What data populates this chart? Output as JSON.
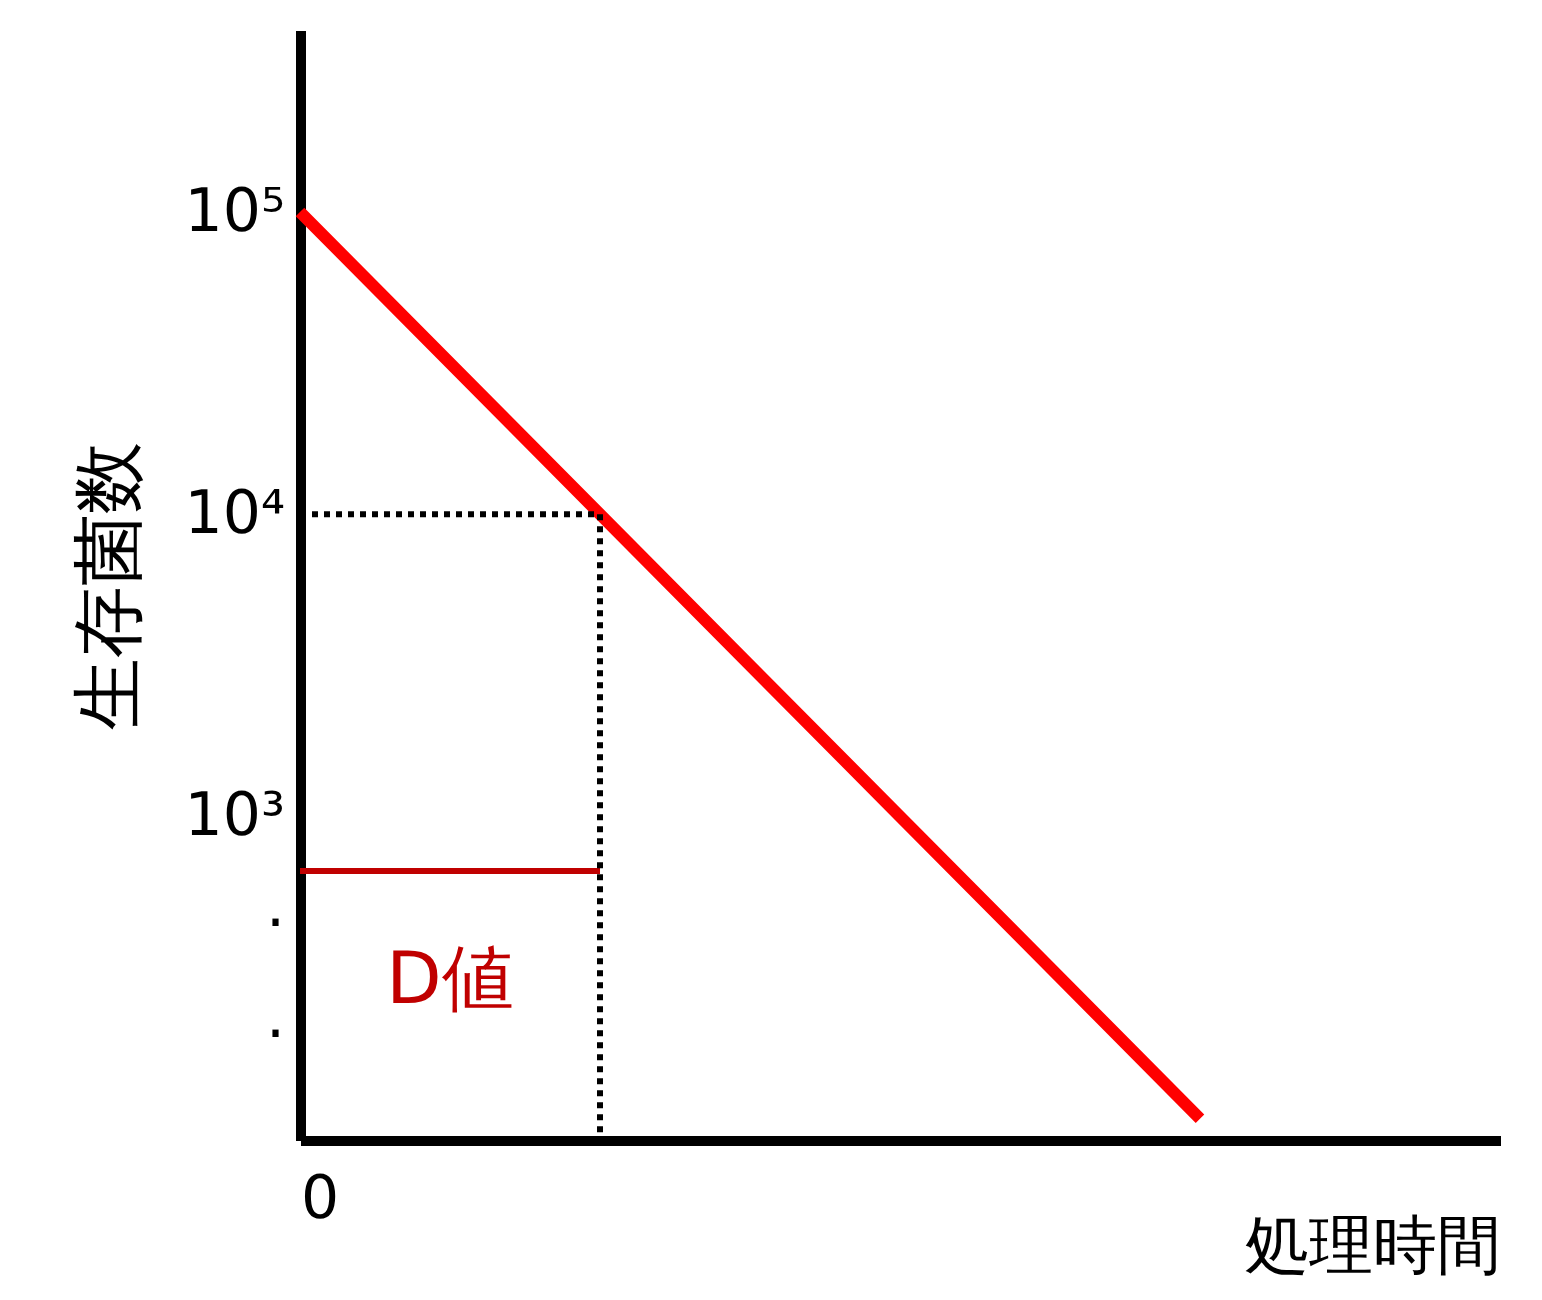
{
  "chart_data": {
    "type": "line",
    "xlabel": "処理時間",
    "ylabel": "生存菌数",
    "categories": [
      null,
      null,
      null,
      null,
      null
    ],
    "series": [
      {
        "color": "#ff0000",
        "values": [
          100000,
          10000,
          1000,
          100,
          null
        ]
      },
      {
        "color": "#c00000",
        "values": [
          660,
          660,
          null,
          null,
          null
        ]
      }
    ],
    "log": "y",
    "ylim": [
      85,
      400000
    ],
    "yticks": [
      {
        "value": 100000,
        "label": "10⁵"
      },
      {
        "value": 10000,
        "label": "10⁴"
      },
      {
        "value": 1000,
        "label": "10³"
      },
      {
        "value": 500,
        "label": "."
      },
      {
        "value": 215,
        "label": "."
      }
    ],
    "ref_lines": [
      {
        "axis": "y",
        "value": 10000,
        "line_style": "dotted",
        "color": "#000000"
      }
    ],
    "annotations": [
      "D値",
      "0"
    ],
    "grid": false,
    "marker": "none",
    "line_style": "solid"
  }
}
